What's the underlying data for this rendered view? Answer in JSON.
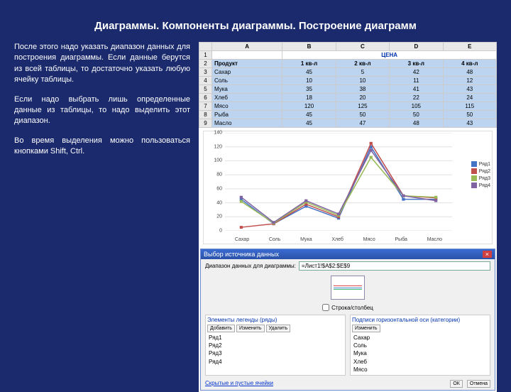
{
  "title": "Диаграммы. Компоненты диаграммы. Построение диаграмм",
  "paragraphs": [
    "После этого надо указать диапазон данных для построения диаграммы. Если данные берутся из всей таблицы, то достаточно указать любую ячейку таблицы.",
    "Если надо выбрать лишь определенные данные из таблицы, то надо выделить этот диапазон.",
    "Во время выделения можно пользоваться кнопками Shift, Ctrl."
  ],
  "sheet": {
    "col_letters": [
      "A",
      "B",
      "C",
      "D",
      "E"
    ],
    "price_header": "ЦЕНА",
    "headers": [
      "Продукт",
      "1 кв-л",
      "2 кв-л",
      "3 кв-л",
      "4 кв-л"
    ],
    "rows": [
      [
        "Сахар",
        "45",
        "5",
        "42",
        "48"
      ],
      [
        "Соль",
        "10",
        "10",
        "11",
        "12"
      ],
      [
        "Мука",
        "35",
        "38",
        "41",
        "43"
      ],
      [
        "Хлеб",
        "18",
        "20",
        "22",
        "24"
      ],
      [
        "Мясо",
        "120",
        "125",
        "105",
        "115"
      ],
      [
        "Рыба",
        "45",
        "50",
        "50",
        "50"
      ],
      [
        "Масло",
        "45",
        "47",
        "48",
        "43"
      ]
    ]
  },
  "chart": {
    "type": "line",
    "categories": [
      "Сахар",
      "Соль",
      "Мука",
      "Хлеб",
      "Мясо",
      "Рыба",
      "Масло"
    ],
    "series": [
      {
        "name": "Ряд1",
        "color": "#4472c4",
        "marker": "diamond",
        "values": [
          45,
          10,
          35,
          18,
          120,
          45,
          45
        ]
      },
      {
        "name": "Ряд2",
        "color": "#c0504d",
        "marker": "square",
        "values": [
          5,
          10,
          38,
          20,
          125,
          50,
          47
        ]
      },
      {
        "name": "Ряд3",
        "color": "#9bbb59",
        "marker": "triangle",
        "values": [
          42,
          11,
          41,
          22,
          105,
          50,
          48
        ]
      },
      {
        "name": "Ряд4",
        "color": "#8064a2",
        "marker": "cross",
        "values": [
          48,
          12,
          43,
          24,
          115,
          50,
          43
        ]
      }
    ],
    "ylim": [
      0,
      140
    ],
    "ytick_step": 20,
    "grid_color": "#e0e0e0",
    "background_color": "#ffffff",
    "line_width": 1.5,
    "marker_size": 4
  },
  "dialog": {
    "title": "Выбор источника данных",
    "range_label": "Диапазон данных для диаграммы:",
    "range_value": "=Лист1!$A$2:$E$9",
    "swap_label": "Строка/столбец",
    "left_header": "Элементы легенды (ряды)",
    "right_header": "Подписи горизонтальной оси (категории)",
    "btn_add": "Добавить",
    "btn_edit": "Изменить",
    "btn_del": "Удалить",
    "series_list": [
      "Ряд1",
      "Ряд2",
      "Ряд3",
      "Ряд4"
    ],
    "cat_list": [
      "Сахар",
      "Соль",
      "Мука",
      "Хлеб",
      "Мясо"
    ],
    "hidden_link": "Скрытые и пустые ячейки",
    "ok": "ОК",
    "cancel": "Отмена"
  }
}
